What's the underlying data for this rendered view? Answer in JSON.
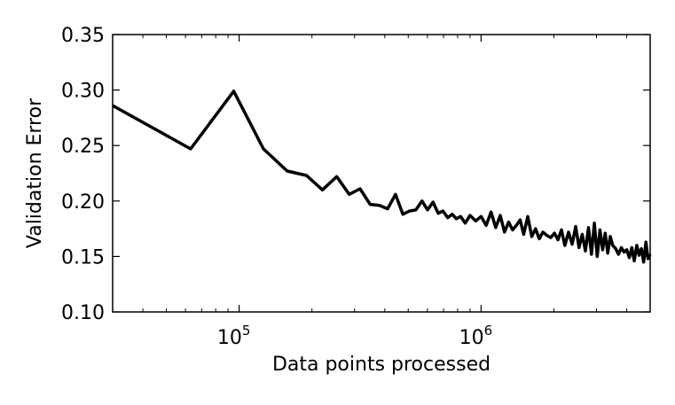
{
  "chart_data": {
    "type": "line",
    "title": "",
    "xlabel": "Data points processed",
    "ylabel": "Validation Error",
    "xscale": "log",
    "xlim": [
      30000,
      5000000
    ],
    "ylim": [
      0.1,
      0.35
    ],
    "grid": false,
    "legend": "none",
    "x_ticks": [
      {
        "value": 100000,
        "base": "10",
        "exp": "5"
      },
      {
        "value": 1000000,
        "base": "10",
        "exp": "6"
      }
    ],
    "y_ticks": [
      {
        "value": 0.1,
        "label": "0.10"
      },
      {
        "value": 0.15,
        "label": "0.15"
      },
      {
        "value": 0.2,
        "label": "0.20"
      },
      {
        "value": 0.25,
        "label": "0.25"
      },
      {
        "value": 0.3,
        "label": "0.30"
      },
      {
        "value": 0.35,
        "label": "0.35"
      }
    ],
    "series": [
      {
        "color": "#000000",
        "x": [
          30000,
          63000,
          95000,
          126000,
          158000,
          190000,
          221000,
          253000,
          285000,
          316000,
          348000,
          380000,
          411000,
          443000,
          475000,
          506000,
          538000,
          570000,
          601000,
          633000,
          665000,
          696000,
          728000,
          760000,
          790000,
          823000,
          860000,
          900000,
          950000,
          1000000,
          1050000,
          1100000,
          1150000,
          1200000,
          1250000,
          1300000,
          1350000,
          1400000,
          1450000,
          1500000,
          1560000,
          1620000,
          1680000,
          1740000,
          1800000,
          1870000,
          1940000,
          2010000,
          2080000,
          2150000,
          2220000,
          2300000,
          2380000,
          2460000,
          2540000,
          2620000,
          2700000,
          2780000,
          2860000,
          2940000,
          3020000,
          3100000,
          3180000,
          3260000,
          3340000,
          3420000,
          3500000,
          3600000,
          3700000,
          3800000,
          3900000,
          4000000,
          4100000,
          4200000,
          4300000,
          4400000,
          4500000,
          4600000,
          4700000,
          4800000,
          4900000,
          5000000
        ],
        "y": [
          0.286,
          0.247,
          0.299,
          0.247,
          0.227,
          0.223,
          0.21,
          0.222,
          0.206,
          0.211,
          0.197,
          0.196,
          0.193,
          0.206,
          0.188,
          0.191,
          0.192,
          0.2,
          0.192,
          0.199,
          0.189,
          0.191,
          0.185,
          0.188,
          0.184,
          0.186,
          0.18,
          0.187,
          0.182,
          0.186,
          0.178,
          0.19,
          0.176,
          0.187,
          0.172,
          0.181,
          0.174,
          0.178,
          0.183,
          0.17,
          0.186,
          0.168,
          0.175,
          0.166,
          0.172,
          0.169,
          0.167,
          0.171,
          0.165,
          0.174,
          0.16,
          0.172,
          0.161,
          0.177,
          0.158,
          0.17,
          0.155,
          0.176,
          0.152,
          0.18,
          0.15,
          0.174,
          0.156,
          0.171,
          0.153,
          0.168,
          0.16,
          0.157,
          0.152,
          0.158,
          0.154,
          0.156,
          0.149,
          0.158,
          0.146,
          0.16,
          0.151,
          0.157,
          0.145,
          0.163,
          0.148,
          0.152
        ]
      }
    ]
  }
}
